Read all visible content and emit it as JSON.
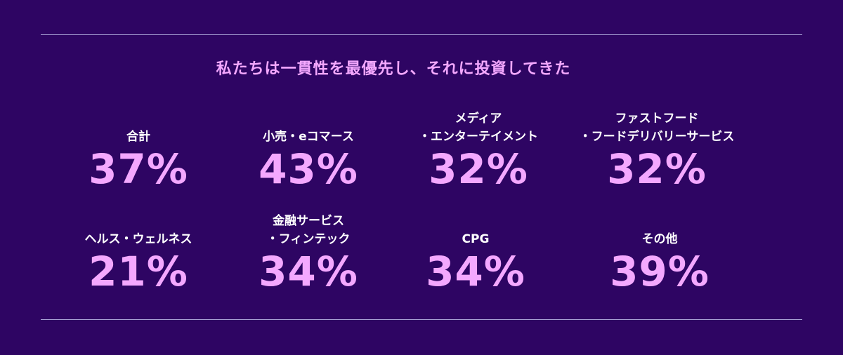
{
  "headline": "私たちは一貫性を最優先し、それに投資してきた",
  "stats": [
    {
      "label_lines": [
        "合計"
      ],
      "value": "37%"
    },
    {
      "label_lines": [
        "小売・eコマース"
      ],
      "value": "43%"
    },
    {
      "label_lines": [
        "メディア",
        "・エンターテイメント"
      ],
      "value": "32%"
    },
    {
      "label_lines": [
        "ファストフード",
        "・フードデリバリーサービス"
      ],
      "value": "32%"
    },
    {
      "label_lines": [
        "ヘルス・ウェルネス"
      ],
      "value": "21%"
    },
    {
      "label_lines": [
        "金融サービス",
        "・フィンテック"
      ],
      "value": "34%"
    },
    {
      "label_lines": [
        "CPG"
      ],
      "value": "34%"
    },
    {
      "label_lines": [
        "その他"
      ],
      "value": "39%"
    }
  ],
  "colors": {
    "background": "#2e0563",
    "accent": "#f4a8ff",
    "rule": "#a9a3d6",
    "label": "#ffffff"
  }
}
